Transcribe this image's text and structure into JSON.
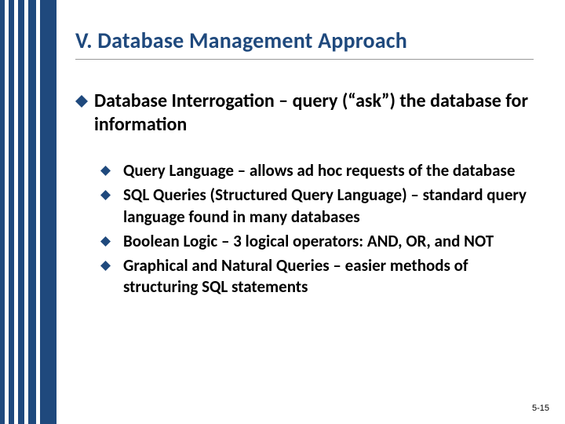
{
  "stripes": {
    "colors": [
      "#1f497d",
      "#ffffff",
      "#1f497d",
      "#ffffff",
      "#1f497d",
      "#ffffff",
      "#1f497d",
      "#ffffff",
      "#1f497d"
    ],
    "widths": [
      6,
      5,
      7,
      5,
      8,
      5,
      10,
      5,
      21
    ]
  },
  "bullet_color": "#1f497d",
  "title": "V. Database Management Approach",
  "main": {
    "text": "Database Interrogation – query (“ask”) the database for information"
  },
  "subs": [
    {
      "text": "Query Language – allows ad hoc requests of the database"
    },
    {
      "text": "SQL Queries (Structured Query Language) – standard query language found in many databases"
    },
    {
      "text": "Boolean Logic – 3 logical operators: AND, OR, and NOT"
    },
    {
      "text": "Graphical and Natural Queries – easier methods of structuring SQL statements"
    }
  ],
  "pagenum": "5-15"
}
